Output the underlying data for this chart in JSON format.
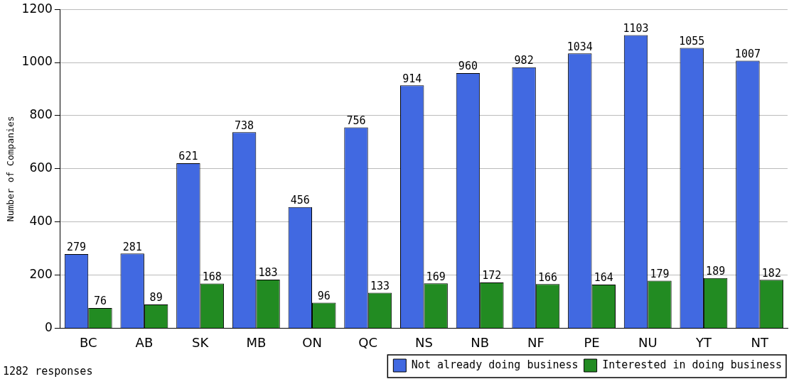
{
  "chart_data": {
    "type": "bar",
    "ylabel": "Number of Companies",
    "categories": [
      "BC",
      "AB",
      "SK",
      "MB",
      "ON",
      "QC",
      "NS",
      "NB",
      "NF",
      "PE",
      "NU",
      "YT",
      "NT"
    ],
    "series": [
      {
        "name": "Not already doing business",
        "color": "#4169e1",
        "values": [
          279,
          281,
          621,
          738,
          456,
          756,
          914,
          960,
          982,
          1034,
          1103,
          1055,
          1007
        ]
      },
      {
        "name": "Interested in doing business",
        "color": "#228b22",
        "values": [
          76,
          89,
          168,
          183,
          96,
          133,
          169,
          172,
          166,
          164,
          179,
          189,
          182
        ]
      }
    ],
    "ylim": [
      0,
      1200
    ],
    "yticks": [
      0,
      200,
      400,
      600,
      800,
      1000,
      1200
    ],
    "grid": "y",
    "legend": "bottom right",
    "data_labels": true,
    "annotations": [
      "1282 responses"
    ]
  }
}
